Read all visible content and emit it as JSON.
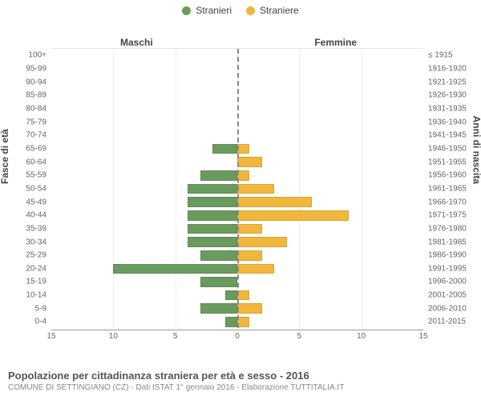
{
  "legend": {
    "male": {
      "label": "Stranieri",
      "color": "#6a9b5e"
    },
    "female": {
      "label": "Straniere",
      "color": "#f1b73c"
    }
  },
  "headers": {
    "left": "Maschi",
    "right": "Femmine"
  },
  "y_axis_left_title": "Fasce di età",
  "y_axis_right_title": "Anni di nascita",
  "x_axis": {
    "max": 15,
    "ticks": [
      15,
      10,
      5,
      0,
      5,
      10,
      15
    ]
  },
  "title": "Popolazione per cittadinanza straniera per età e sesso - 2016",
  "subtitle": "COMUNE DI SETTINGIANO (CZ) - Dati ISTAT 1° gennaio 2016 - Elaborazione TUTTITALIA.IT",
  "rows": [
    {
      "age": "100+",
      "birth": "≤ 1915",
      "m": 0,
      "f": 0
    },
    {
      "age": "95-99",
      "birth": "1916-1920",
      "m": 0,
      "f": 0
    },
    {
      "age": "90-94",
      "birth": "1921-1925",
      "m": 0,
      "f": 0
    },
    {
      "age": "85-89",
      "birth": "1926-1930",
      "m": 0,
      "f": 0
    },
    {
      "age": "80-84",
      "birth": "1931-1935",
      "m": 0,
      "f": 0
    },
    {
      "age": "75-79",
      "birth": "1936-1940",
      "m": 0,
      "f": 0
    },
    {
      "age": "70-74",
      "birth": "1941-1945",
      "m": 0,
      "f": 0
    },
    {
      "age": "65-69",
      "birth": "1946-1950",
      "m": 2,
      "f": 1
    },
    {
      "age": "60-64",
      "birth": "1951-1955",
      "m": 0,
      "f": 2
    },
    {
      "age": "55-59",
      "birth": "1956-1960",
      "m": 3,
      "f": 1
    },
    {
      "age": "50-54",
      "birth": "1961-1965",
      "m": 4,
      "f": 3
    },
    {
      "age": "45-49",
      "birth": "1966-1970",
      "m": 4,
      "f": 6
    },
    {
      "age": "40-44",
      "birth": "1971-1975",
      "m": 4,
      "f": 9
    },
    {
      "age": "35-39",
      "birth": "1976-1980",
      "m": 4,
      "f": 2
    },
    {
      "age": "30-34",
      "birth": "1981-1985",
      "m": 4,
      "f": 4
    },
    {
      "age": "25-29",
      "birth": "1986-1990",
      "m": 3,
      "f": 2
    },
    {
      "age": "20-24",
      "birth": "1991-1995",
      "m": 10,
      "f": 3
    },
    {
      "age": "15-19",
      "birth": "1996-2000",
      "m": 3,
      "f": 0
    },
    {
      "age": "10-14",
      "birth": "2001-2005",
      "m": 1,
      "f": 1
    },
    {
      "age": "5-9",
      "birth": "2006-2010",
      "m": 3,
      "f": 2
    },
    {
      "age": "0-4",
      "birth": "2011-2015",
      "m": 1,
      "f": 1
    }
  ],
  "colors": {
    "male_fill": "#6a9b5e",
    "female_fill": "#f1b73c",
    "background": "#ffffff",
    "grid": "#eeeeee"
  }
}
